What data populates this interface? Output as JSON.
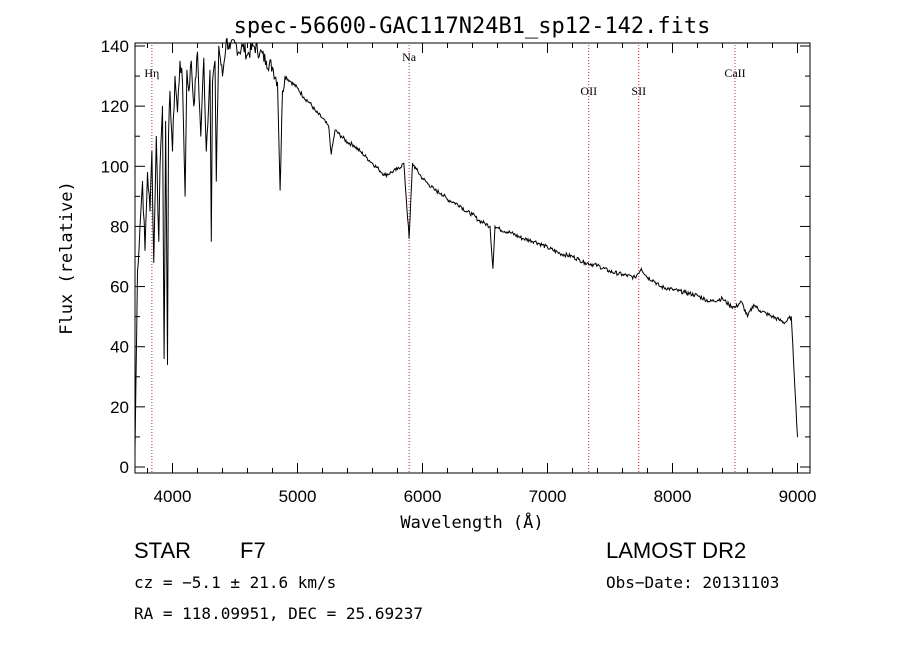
{
  "chart_data": {
    "type": "line",
    "title": "spec-56600-GAC117N24B1_sp12-142.fits",
    "xlabel": "Wavelength (Å)",
    "ylabel": "Flux (relative)",
    "xlim": [
      3700,
      9100
    ],
    "ylim": [
      -2,
      141
    ],
    "xticks": [
      4000,
      5000,
      6000,
      7000,
      8000,
      9000
    ],
    "yticks": [
      0,
      20,
      40,
      60,
      80,
      100,
      120,
      140
    ],
    "grid": false,
    "series": [
      {
        "name": "flux",
        "x": [
          3700,
          3720,
          3740,
          3760,
          3780,
          3800,
          3820,
          3835,
          3850,
          3870,
          3890,
          3900,
          3920,
          3933,
          3945,
          3960,
          3968,
          3980,
          4000,
          4020,
          4040,
          4060,
          4080,
          4101,
          4115,
          4130,
          4150,
          4170,
          4200,
          4226,
          4250,
          4270,
          4300,
          4310,
          4320,
          4340,
          4350,
          4370,
          4400,
          4430,
          4460,
          4500,
          4530,
          4560,
          4600,
          4650,
          4700,
          4750,
          4800,
          4840,
          4861,
          4880,
          4900,
          4950,
          5000,
          5050,
          5100,
          5150,
          5200,
          5250,
          5270,
          5300,
          5350,
          5400,
          5450,
          5500,
          5550,
          5600,
          5650,
          5700,
          5750,
          5800,
          5850,
          5893,
          5920,
          5950,
          6000,
          6050,
          6100,
          6150,
          6200,
          6250,
          6300,
          6350,
          6400,
          6450,
          6500,
          6540,
          6563,
          6580,
          6620,
          6700,
          6800,
          6900,
          7000,
          7100,
          7200,
          7250,
          7300,
          7400,
          7500,
          7600,
          7700,
          7750,
          7800,
          7850,
          7900,
          8000,
          8100,
          8200,
          8300,
          8400,
          8450,
          8500,
          8550,
          8600,
          8650,
          8700,
          8750,
          8800,
          8850,
          8900,
          8950,
          9000
        ],
        "y": [
          5,
          65,
          80,
          95,
          72,
          98,
          85,
          105,
          68,
          110,
          75,
          100,
          120,
          36,
          115,
          34,
          110,
          125,
          105,
          130,
          118,
          135,
          128,
          90,
          132,
          125,
          135,
          120,
          138,
          110,
          136,
          105,
          132,
          75,
          128,
          135,
          95,
          140,
          130,
          142,
          139,
          141,
          138,
          140,
          137,
          140,
          138,
          135,
          133,
          128,
          92,
          125,
          130,
          128,
          126,
          123,
          121,
          118,
          116,
          113,
          104,
          112,
          110,
          108,
          107,
          105,
          103,
          101,
          99,
          97,
          98,
          99,
          101,
          76,
          101,
          99,
          96,
          94,
          92,
          91,
          89,
          88,
          87,
          85,
          84,
          82,
          81,
          80,
          66,
          80,
          79,
          78,
          76,
          75,
          73,
          71,
          70,
          69,
          68,
          67,
          65,
          64,
          63,
          66,
          63,
          62,
          60,
          59,
          58,
          57,
          55,
          56,
          54,
          53,
          55,
          50,
          54,
          52,
          51,
          50,
          49,
          48,
          50,
          10
        ]
      }
    ],
    "line_markers": [
      {
        "label": "Hη",
        "x": 3835
      },
      {
        "label": "Na",
        "x": 5893
      },
      {
        "label": "OII",
        "x": 7330
      },
      {
        "label": "SII",
        "x": 7730
      },
      {
        "label": "CaII",
        "x": 8500
      }
    ]
  },
  "info": {
    "object_class": "STAR",
    "subclass": "F7",
    "survey": "LAMOST DR2",
    "redshift": "cz = −5.1 ± 21.6 km/s",
    "obs_date": "Obs−Date: 20131103",
    "coords": "RA = 118.09951, DEC =  25.69237"
  }
}
